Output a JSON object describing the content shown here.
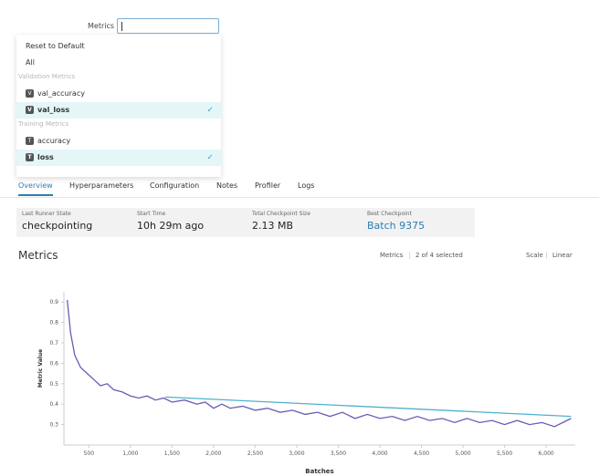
{
  "metrics_filter": {
    "label": "Metrics",
    "actions": [
      "Reset to Default",
      "All"
    ],
    "groups": [
      {
        "title": "Validation Metrics",
        "items": [
          {
            "badge": "V",
            "name": "val_accuracy",
            "checked": false
          },
          {
            "badge": "V",
            "name": "val_loss",
            "checked": true
          }
        ]
      },
      {
        "title": "Training Metrics",
        "items": [
          {
            "badge": "T",
            "name": "accuracy",
            "checked": false
          },
          {
            "badge": "T",
            "name": "loss",
            "checked": true
          }
        ]
      }
    ]
  },
  "tabs": [
    "Overview",
    "Hyperparameters",
    "Configuration",
    "Notes",
    "Profiler",
    "Logs"
  ],
  "active_tab": 0,
  "summary": [
    {
      "label": "Last Runner State",
      "value": "checkpointing"
    },
    {
      "label": "Start Time",
      "value": "10h 29m ago"
    },
    {
      "label": "Total Checkpoint Size",
      "value": "2.13 MB"
    },
    {
      "label": "Best Checkpoint",
      "value": "Batch 9375"
    }
  ],
  "metrics_section": {
    "title": "Metrics",
    "selector_label": "Metrics",
    "selector_value": "2 of 4 selected",
    "scale_label": "Scale",
    "scale_value": "Linear"
  },
  "chart_data": {
    "type": "line",
    "x_label": "Batches",
    "y_label": "Metric Value",
    "xlim": [
      200,
      6350
    ],
    "ylim": [
      0.2,
      0.95
    ],
    "xticks": [
      500,
      {
        "value": 1000,
        "label": "1,000"
      },
      {
        "value": 1500,
        "label": "1,500"
      },
      {
        "value": 2000,
        "label": "2,000"
      },
      {
        "value": 2500,
        "label": "2,500"
      },
      {
        "value": 3000,
        "label": "3,000"
      },
      {
        "value": 3500,
        "label": "3,500"
      },
      {
        "value": 4000,
        "label": "4,000"
      },
      {
        "value": 4500,
        "label": "4,500"
      },
      {
        "value": 5000,
        "label": "5,000"
      },
      {
        "value": 5500,
        "label": "5,500"
      },
      {
        "value": 6000,
        "label": "6,000"
      }
    ],
    "yticks": [
      0.3,
      0.4,
      0.5,
      0.6,
      0.7,
      0.8,
      0.9
    ],
    "series": [
      {
        "color": "#6a5bb5",
        "x": [
          240,
          280,
          330,
          400,
          480,
          560,
          640,
          720,
          800,
          900,
          1000,
          1100,
          1200,
          1300,
          1400,
          1500,
          1650,
          1800,
          1900,
          2000,
          2100,
          2200,
          2350,
          2500,
          2650,
          2800,
          2950,
          3100,
          3250,
          3400,
          3550,
          3700,
          3850,
          4000,
          4150,
          4300,
          4450,
          4600,
          4750,
          4900,
          5050,
          5200,
          5350,
          5500,
          5650,
          5800,
          5950,
          6100,
          6200,
          6300
        ],
        "values": [
          0.91,
          0.75,
          0.64,
          0.58,
          0.55,
          0.52,
          0.49,
          0.5,
          0.47,
          0.46,
          0.44,
          0.43,
          0.44,
          0.42,
          0.43,
          0.41,
          0.42,
          0.4,
          0.41,
          0.38,
          0.4,
          0.38,
          0.39,
          0.37,
          0.38,
          0.36,
          0.37,
          0.35,
          0.36,
          0.34,
          0.36,
          0.33,
          0.35,
          0.33,
          0.34,
          0.32,
          0.34,
          0.32,
          0.33,
          0.31,
          0.33,
          0.31,
          0.32,
          0.3,
          0.32,
          0.3,
          0.31,
          0.29,
          0.31,
          0.33
        ]
      },
      {
        "color": "#4fb0cf",
        "x": [
          1420,
          6300
        ],
        "values": [
          0.435,
          0.34
        ]
      }
    ]
  }
}
